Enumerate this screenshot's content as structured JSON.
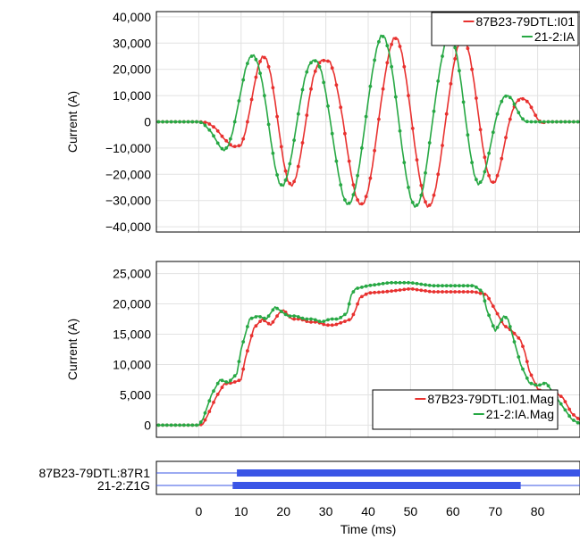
{
  "chart_data": [
    {
      "type": "line",
      "ylabel": "Current (A)",
      "xlim": [
        -10,
        90
      ],
      "ylim": [
        -42000,
        42000
      ],
      "y_ticks": [
        40000,
        30000,
        20000,
        10000,
        0,
        -10000,
        -20000,
        -30000,
        -40000
      ],
      "y_tick_labels": [
        "40,000",
        "30,000",
        "20,000",
        "10,000",
        "0",
        "−10,000",
        "−20,000",
        "−30,000",
        "−40,000"
      ],
      "grid": true,
      "legend_position": "top-right",
      "series": [
        {
          "name": "87B23-79DTL:I01",
          "color": "#e8312f",
          "points": [
            [
              -10,
              0
            ],
            [
              0,
              0
            ],
            [
              2,
              -300
            ],
            [
              4,
              -2500
            ],
            [
              6,
              -6500
            ],
            [
              8,
              -9500
            ],
            [
              10,
              -9000
            ],
            [
              11,
              -4000
            ],
            [
              12,
              4000
            ],
            [
              13,
              13000
            ],
            [
              14,
              21000
            ],
            [
              15,
              25000
            ],
            [
              16,
              24000
            ],
            [
              17,
              18000
            ],
            [
              18,
              8000
            ],
            [
              19,
              -4000
            ],
            [
              20,
              -15000
            ],
            [
              21,
              -22500
            ],
            [
              22,
              -24500
            ],
            [
              23,
              -21000
            ],
            [
              24,
              -13000
            ],
            [
              25,
              -3000
            ],
            [
              26,
              8000
            ],
            [
              27,
              17000
            ],
            [
              28,
              21500
            ],
            [
              29,
              23500
            ],
            [
              31,
              23000
            ],
            [
              32,
              18000
            ],
            [
              33,
              10000
            ],
            [
              34,
              1000
            ],
            [
              35,
              -10000
            ],
            [
              36,
              -20000
            ],
            [
              37,
              -28000
            ],
            [
              38,
              -31500
            ],
            [
              39,
              -31000
            ],
            [
              40,
              -26000
            ],
            [
              41,
              -17000
            ],
            [
              42,
              -5000
            ],
            [
              43,
              7000
            ],
            [
              44,
              18000
            ],
            [
              45,
              27000
            ],
            [
              46,
              32000
            ],
            [
              47,
              31500
            ],
            [
              48,
              26000
            ],
            [
              49,
              16000
            ],
            [
              50,
              4000
            ],
            [
              51,
              -9000
            ],
            [
              52,
              -20000
            ],
            [
              53,
              -28500
            ],
            [
              54,
              -32500
            ],
            [
              55,
              -31000
            ],
            [
              56,
              -25000
            ],
            [
              57,
              -15000
            ],
            [
              58,
              -3000
            ],
            [
              59,
              9000
            ],
            [
              60,
              20000
            ],
            [
              61,
              28000
            ],
            [
              62,
              31500
            ],
            [
              63,
              31000
            ],
            [
              64,
              25000
            ],
            [
              65,
              15000
            ],
            [
              66,
              3000
            ],
            [
              67,
              -9000
            ],
            [
              68,
              -18000
            ],
            [
              69,
              -23000
            ],
            [
              70,
              -23000
            ],
            [
              71,
              -18000
            ],
            [
              72,
              -10000
            ],
            [
              73,
              -2000
            ],
            [
              74,
              4000
            ],
            [
              75,
              7500
            ],
            [
              76,
              9000
            ],
            [
              77,
              8500
            ],
            [
              78,
              7000
            ],
            [
              79,
              4000
            ],
            [
              80,
              1000
            ],
            [
              81,
              -500
            ],
            [
              82,
              0
            ],
            [
              84,
              0
            ],
            [
              90,
              0
            ]
          ]
        },
        {
          "name": "21-2:IA",
          "color": "#27a844",
          "points": [
            [
              -10,
              0
            ],
            [
              0,
              0
            ],
            [
              1,
              -500
            ],
            [
              3,
              -4000
            ],
            [
              5,
              -9500
            ],
            [
              6,
              -11000
            ],
            [
              7,
              -9000
            ],
            [
              8,
              -4000
            ],
            [
              9,
              4000
            ],
            [
              10,
              12000
            ],
            [
              11,
              20000
            ],
            [
              12,
              24500
            ],
            [
              13,
              25500
            ],
            [
              14,
              22000
            ],
            [
              15,
              15000
            ],
            [
              16,
              5000
            ],
            [
              17,
              -7000
            ],
            [
              18,
              -17000
            ],
            [
              19,
              -23500
            ],
            [
              20,
              -24500
            ],
            [
              21,
              -20000
            ],
            [
              22,
              -12000
            ],
            [
              23,
              -2000
            ],
            [
              24,
              8000
            ],
            [
              25,
              16500
            ],
            [
              26,
              21500
            ],
            [
              27,
              23500
            ],
            [
              28,
              23000
            ],
            [
              29,
              19000
            ],
            [
              30,
              11000
            ],
            [
              31,
              1000
            ],
            [
              32,
              -10000
            ],
            [
              33,
              -20000
            ],
            [
              34,
              -28000
            ],
            [
              35,
              -31500
            ],
            [
              36,
              -30500
            ],
            [
              37,
              -25000
            ],
            [
              38,
              -16000
            ],
            [
              39,
              -4000
            ],
            [
              40,
              8000
            ],
            [
              41,
              19000
            ],
            [
              42,
              28000
            ],
            [
              43,
              33000
            ],
            [
              44,
              32000
            ],
            [
              45,
              26000
            ],
            [
              46,
              16000
            ],
            [
              47,
              3000
            ],
            [
              48,
              -10000
            ],
            [
              49,
              -21000
            ],
            [
              50,
              -29000
            ],
            [
              51,
              -32500
            ],
            [
              52,
              -31000
            ],
            [
              53,
              -25000
            ],
            [
              54,
              -14000
            ],
            [
              55,
              -2000
            ],
            [
              56,
              10000
            ],
            [
              57,
              21000
            ],
            [
              58,
              29000
            ],
            [
              59,
              32500
            ],
            [
              60,
              31500
            ],
            [
              61,
              25000
            ],
            [
              62,
              14000
            ],
            [
              63,
              1000
            ],
            [
              64,
              -11000
            ],
            [
              65,
              -20000
            ],
            [
              66,
              -24000
            ],
            [
              67,
              -22000
            ],
            [
              68,
              -16000
            ],
            [
              69,
              -8000
            ],
            [
              70,
              0
            ],
            [
              71,
              6000
            ],
            [
              72,
              9500
            ],
            [
              73,
              10000
            ],
            [
              74,
              8500
            ],
            [
              75,
              5000
            ],
            [
              76,
              2000
            ],
            [
              77,
              200
            ],
            [
              78,
              0
            ],
            [
              90,
              0
            ]
          ]
        }
      ]
    },
    {
      "type": "line",
      "xlabel": "Time (ms)",
      "ylabel": "Current (A)",
      "xlim": [
        -10,
        90
      ],
      "ylim": [
        -2000,
        27000
      ],
      "y_ticks": [
        25000,
        20000,
        15000,
        10000,
        5000,
        0
      ],
      "y_tick_labels": [
        "25,000",
        "20,000",
        "15,000",
        "10,000",
        "5,000",
        "0"
      ],
      "x_ticks": [
        0,
        10,
        20,
        30,
        40,
        50,
        60,
        70,
        80
      ],
      "x_tick_labels": [
        "0",
        "10",
        "20",
        "30",
        "40",
        "50",
        "60",
        "70",
        "80"
      ],
      "grid": true,
      "legend_position": "bottom-right",
      "series": [
        {
          "name": "87B23-79DTL:I01.Mag",
          "color": "#e8312f",
          "points": [
            [
              -10,
              0
            ],
            [
              0,
              0
            ],
            [
              1,
              200
            ],
            [
              2,
              1500
            ],
            [
              4,
              4500
            ],
            [
              6,
              6800
            ],
            [
              8,
              7000
            ],
            [
              10,
              7500
            ],
            [
              11,
              11000
            ],
            [
              13,
              16000
            ],
            [
              15,
              17500
            ],
            [
              17,
              16500
            ],
            [
              19,
              18500
            ],
            [
              20,
              19000
            ],
            [
              22,
              17500
            ],
            [
              24,
              17500
            ],
            [
              26,
              17000
            ],
            [
              28,
              17000
            ],
            [
              30,
              16500
            ],
            [
              32,
              16500
            ],
            [
              34,
              17000
            ],
            [
              36,
              17500
            ],
            [
              37,
              19000
            ],
            [
              38,
              21000
            ],
            [
              40,
              21800
            ],
            [
              44,
              22000
            ],
            [
              50,
              22500
            ],
            [
              55,
              22000
            ],
            [
              60,
              22000
            ],
            [
              65,
              22000
            ],
            [
              68,
              21500
            ],
            [
              70,
              19000
            ],
            [
              72,
              16500
            ],
            [
              74,
              15500
            ],
            [
              76,
              14000
            ],
            [
              77,
              12000
            ],
            [
              78,
              9000
            ],
            [
              80,
              6000
            ],
            [
              82,
              5000
            ],
            [
              84,
              5500
            ],
            [
              86,
              4500
            ],
            [
              88,
              2000
            ],
            [
              90,
              800
            ]
          ]
        },
        {
          "name": "21-2:IA.Mag",
          "color": "#27a844",
          "points": [
            [
              -10,
              0
            ],
            [
              0,
              0
            ],
            [
              1,
              1000
            ],
            [
              3,
              5000
            ],
            [
              5,
              7500
            ],
            [
              7,
              7000
            ],
            [
              9,
              8500
            ],
            [
              10,
              12500
            ],
            [
              12,
              17500
            ],
            [
              14,
              18000
            ],
            [
              16,
              17500
            ],
            [
              18,
              19500
            ],
            [
              19,
              19000
            ],
            [
              21,
              18000
            ],
            [
              23,
              18000
            ],
            [
              25,
              17500
            ],
            [
              27,
              17500
            ],
            [
              29,
              17000
            ],
            [
              31,
              17500
            ],
            [
              33,
              17500
            ],
            [
              35,
              18500
            ],
            [
              36,
              21500
            ],
            [
              37,
              22500
            ],
            [
              40,
              23000
            ],
            [
              45,
              23500
            ],
            [
              50,
              23500
            ],
            [
              55,
              23000
            ],
            [
              60,
              23000
            ],
            [
              65,
              23000
            ],
            [
              67,
              22000
            ],
            [
              68,
              19000
            ],
            [
              70,
              15500
            ],
            [
              72,
              18000
            ],
            [
              73,
              17500
            ],
            [
              74,
              15000
            ],
            [
              76,
              10000
            ],
            [
              78,
              7000
            ],
            [
              80,
              6500
            ],
            [
              82,
              7000
            ],
            [
              84,
              5000
            ],
            [
              86,
              3000
            ],
            [
              88,
              1000
            ],
            [
              90,
              200
            ]
          ]
        }
      ]
    },
    {
      "type": "timeline",
      "xlim": [
        -10,
        90
      ],
      "categories": [
        "87B23-79DTL:87R1",
        "21-2:Z1G"
      ],
      "series": [
        {
          "name": "87B23-79DTL:87R1",
          "color": "#3a55e6",
          "on_from": 9,
          "on_to": 90
        },
        {
          "name": "21-2:Z1G",
          "color": "#3a55e6",
          "on_from": 8,
          "on_to": 76
        }
      ]
    }
  ]
}
